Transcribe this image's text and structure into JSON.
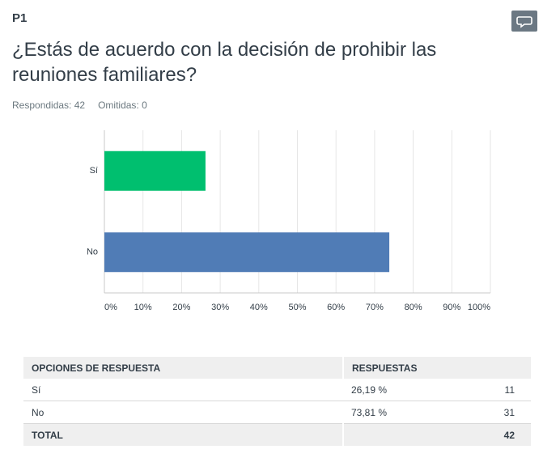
{
  "header": {
    "id": "P1",
    "title": "¿Estás de acuerdo con la decisión de prohibir las reuniones familiares?",
    "answered": "Respondidas: 42",
    "skipped": "Omitidas: 0"
  },
  "chart_data": {
    "type": "bar",
    "orientation": "horizontal",
    "categories": [
      "Sí",
      "No"
    ],
    "values": [
      26.19,
      73.81
    ],
    "colors": [
      "#00bf6f",
      "#507cb6"
    ],
    "xlim": [
      0,
      100
    ],
    "xticks": [
      {
        "value": 0,
        "label": "0%"
      },
      {
        "value": 10,
        "label": "10%"
      },
      {
        "value": 20,
        "label": "20%"
      },
      {
        "value": 30,
        "label": "30%"
      },
      {
        "value": 40,
        "label": "40%"
      },
      {
        "value": 50,
        "label": "50%"
      },
      {
        "value": 60,
        "label": "60%"
      },
      {
        "value": 70,
        "label": "70%"
      },
      {
        "value": 80,
        "label": "80%"
      },
      {
        "value": 90,
        "label": "90%"
      },
      {
        "value": 100,
        "label": "100%"
      }
    ],
    "grid": true
  },
  "table": {
    "headers": [
      "OPCIONES DE RESPUESTA",
      "RESPUESTAS"
    ],
    "rows": [
      [
        "Sí",
        "26,19 %",
        "11"
      ],
      [
        "No",
        "73,81 %",
        "31"
      ]
    ],
    "total": [
      "TOTAL",
      "42"
    ]
  }
}
